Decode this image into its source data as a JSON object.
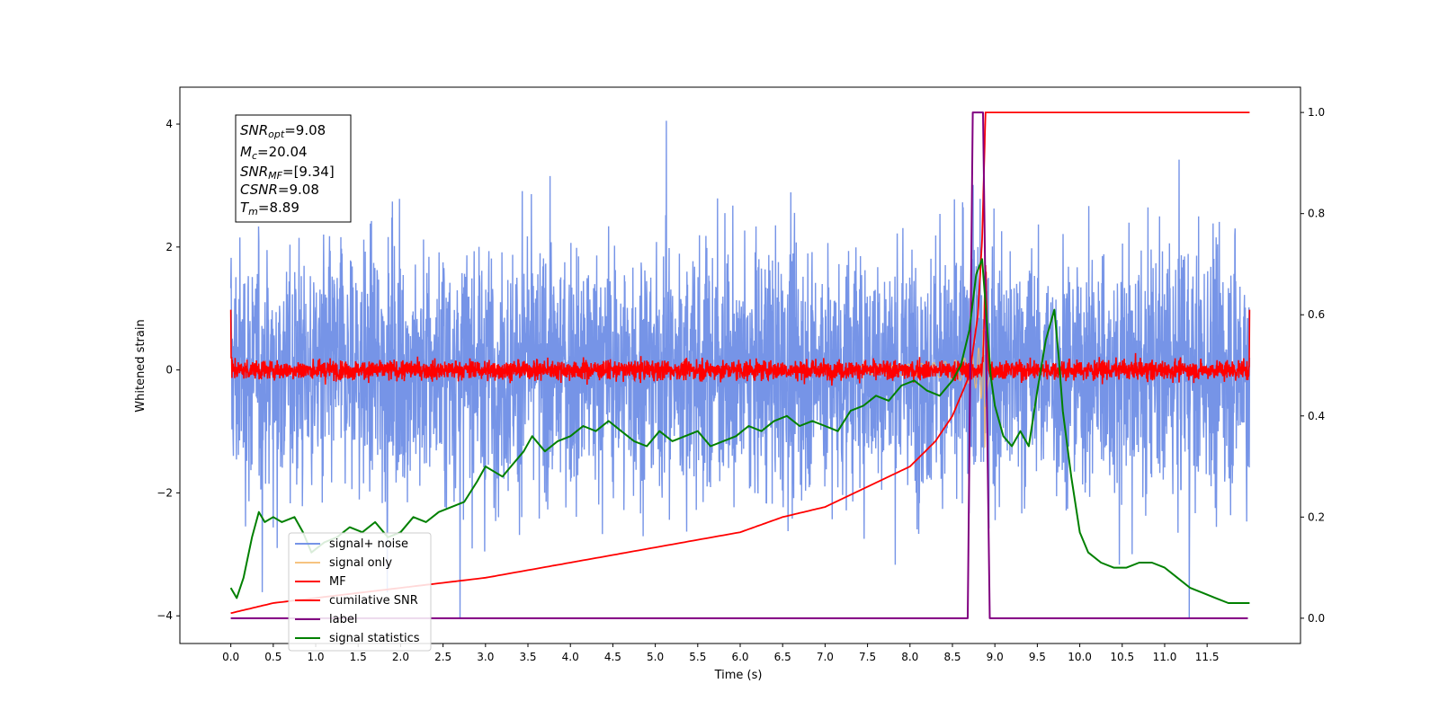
{
  "chart_data": {
    "type": "line",
    "xlabel": "Time (s)",
    "ylabel": "Whitened strain",
    "xlim": [
      -0.6,
      12.6
    ],
    "ylim_left": [
      -4.45,
      4.6
    ],
    "ylim_right": [
      -0.05,
      1.05
    ],
    "x_ticks": [
      "0.0",
      "0.5",
      "1.0",
      "1.5",
      "2.0",
      "2.5",
      "3.0",
      "3.5",
      "4.0",
      "4.5",
      "5.0",
      "5.5",
      "6.0",
      "6.5",
      "7.0",
      "7.5",
      "8.0",
      "8.5",
      "9.0",
      "9.5",
      "10.0",
      "10.5",
      "11.0",
      "11.5"
    ],
    "y_ticks_left": [
      "−4",
      "−2",
      "0",
      "2",
      "4"
    ],
    "y_ticks_right": [
      "0.0",
      "0.2",
      "0.4",
      "0.6",
      "0.8",
      "1.0"
    ],
    "grid": false,
    "legend_position": "lower-left",
    "info_box": {
      "snr_opt": {
        "base": "SNR",
        "sub": "opt",
        "value": "=9.08"
      },
      "mc": {
        "base": "M",
        "sub": "c",
        "value": "=20.04"
      },
      "snr_mf": {
        "base": "SNR",
        "sub": "MF",
        "value": "=[9.34]"
      },
      "csnr": {
        "base": "CSNR",
        "sub": "",
        "value": "=9.08"
      },
      "tm": {
        "base": "T",
        "sub": "m",
        "value": "=8.89"
      }
    },
    "series": [
      {
        "name": "signal+ noise",
        "color": "#6f8ee6",
        "axis": "left",
        "kind": "noise",
        "amplitude_range": [
          -4.05,
          4.15
        ]
      },
      {
        "name": "signal only",
        "color": "#f5b96a",
        "axis": "left",
        "kind": "chirp",
        "merger_time": 8.89
      },
      {
        "name": "MF",
        "color": "#ff0000",
        "axis": "left",
        "kind": "mf_noise"
      },
      {
        "name": "cumilative SNR",
        "color": "#ff0000",
        "axis": "right",
        "x": [
          0.0,
          0.5,
          1.0,
          2.0,
          3.0,
          4.0,
          5.0,
          6.0,
          6.5,
          7.0,
          7.5,
          8.0,
          8.3,
          8.5,
          8.7,
          8.8,
          8.85,
          8.89,
          12.0
        ],
        "values": [
          0.01,
          0.03,
          0.04,
          0.06,
          0.08,
          0.11,
          0.14,
          0.17,
          0.2,
          0.22,
          0.26,
          0.3,
          0.35,
          0.4,
          0.48,
          0.6,
          0.75,
          1.0,
          1.0
        ]
      },
      {
        "name": "label",
        "color": "#800080",
        "axis": "right",
        "x": [
          0.0,
          8.68,
          8.74,
          8.86,
          8.94,
          11.98
        ],
        "values": [
          0.0,
          0.0,
          1.0,
          1.0,
          0.0,
          0.0
        ]
      },
      {
        "name": "signal statistics",
        "color": "#008000",
        "axis": "right",
        "x": [
          0.0,
          0.07,
          0.15,
          0.25,
          0.33,
          0.4,
          0.5,
          0.6,
          0.75,
          0.85,
          0.95,
          1.1,
          1.25,
          1.4,
          1.55,
          1.7,
          1.85,
          2.0,
          2.15,
          2.3,
          2.45,
          2.6,
          2.75,
          2.9,
          3.0,
          3.1,
          3.2,
          3.3,
          3.45,
          3.55,
          3.7,
          3.85,
          4.0,
          4.15,
          4.3,
          4.45,
          4.6,
          4.75,
          4.9,
          5.05,
          5.2,
          5.35,
          5.5,
          5.65,
          5.8,
          5.95,
          6.1,
          6.25,
          6.4,
          6.55,
          6.7,
          6.85,
          7.0,
          7.15,
          7.3,
          7.45,
          7.6,
          7.75,
          7.9,
          8.05,
          8.2,
          8.35,
          8.5,
          8.6,
          8.7,
          8.78,
          8.85,
          8.9,
          8.95,
          9.0,
          9.1,
          9.2,
          9.3,
          9.4,
          9.5,
          9.6,
          9.7,
          9.75,
          9.8,
          9.9,
          10.0,
          10.1,
          10.25,
          10.4,
          10.55,
          10.7,
          10.85,
          11.0,
          11.15,
          11.3,
          11.45,
          11.6,
          11.75,
          11.9,
          12.0
        ],
        "values": [
          0.06,
          0.04,
          0.08,
          0.16,
          0.21,
          0.19,
          0.2,
          0.19,
          0.2,
          0.17,
          0.13,
          0.15,
          0.16,
          0.18,
          0.17,
          0.19,
          0.16,
          0.17,
          0.2,
          0.19,
          0.21,
          0.22,
          0.23,
          0.27,
          0.3,
          0.29,
          0.28,
          0.3,
          0.33,
          0.36,
          0.33,
          0.35,
          0.36,
          0.38,
          0.37,
          0.39,
          0.37,
          0.35,
          0.34,
          0.37,
          0.35,
          0.36,
          0.37,
          0.34,
          0.35,
          0.36,
          0.38,
          0.37,
          0.39,
          0.4,
          0.38,
          0.39,
          0.38,
          0.37,
          0.41,
          0.42,
          0.44,
          0.43,
          0.46,
          0.47,
          0.45,
          0.44,
          0.47,
          0.5,
          0.57,
          0.68,
          0.71,
          0.6,
          0.48,
          0.42,
          0.36,
          0.34,
          0.37,
          0.34,
          0.45,
          0.55,
          0.61,
          0.52,
          0.41,
          0.28,
          0.17,
          0.13,
          0.11,
          0.1,
          0.1,
          0.11,
          0.11,
          0.1,
          0.08,
          0.06,
          0.05,
          0.04,
          0.03,
          0.03,
          0.03
        ]
      }
    ]
  }
}
